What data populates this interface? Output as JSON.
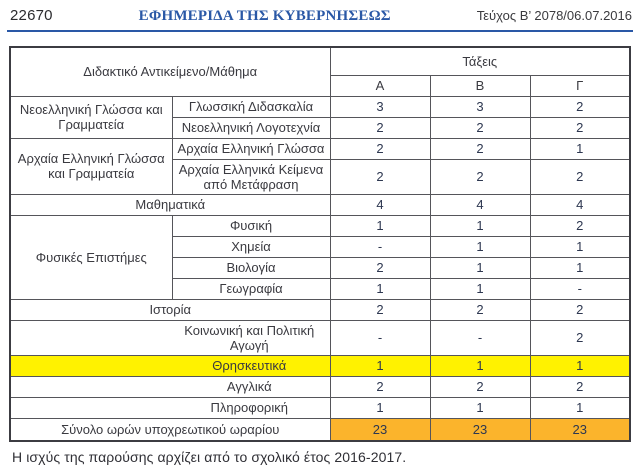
{
  "header": {
    "page_number": "22670",
    "gazette_title": "ΕΦΗΜΕΡΙΔΑ ΤΗΣ ΚΥΒΕΡΝΗΣΕΩΣ",
    "issue_info": "Τεύχος Β’ 2078/06.07.2016",
    "rule_color": "#2A58A6",
    "title_color": "#2A58A6"
  },
  "table": {
    "header": {
      "subject_label": "Διδακτικό Αντικείμενο/Μάθημα",
      "grades_label": "Τάξεις",
      "grade_columns": [
        "Α",
        "Β",
        "Γ"
      ]
    },
    "rows": [
      {
        "group": "Νεοελληνική Γλώσσα και Γραμματεία",
        "subject": "Γλωσσική Διδασκαλία",
        "values": [
          "3",
          "3",
          "2"
        ]
      },
      {
        "subject": "Νεοελληνική Λογοτεχνία",
        "values": [
          "2",
          "2",
          "2"
        ]
      },
      {
        "group": "Αρχαία Ελληνική Γλώσσα και Γραμματεία",
        "subject": "Αρχαία Ελληνική Γλώσσα",
        "values": [
          "2",
          "2",
          "1"
        ]
      },
      {
        "subject": "Αρχαία Ελληνικά Κείμενα από Μετάφραση",
        "values": [
          "2",
          "2",
          "2"
        ]
      },
      {
        "subject": "Μαθηματικά",
        "values": [
          "4",
          "4",
          "4"
        ]
      },
      {
        "group": "Φυσικές Επιστήμες",
        "subject": "Φυσική",
        "values": [
          "1",
          "1",
          "2"
        ]
      },
      {
        "subject": "Χημεία",
        "values": [
          "-",
          "1",
          "1"
        ]
      },
      {
        "subject": "Βιολογία",
        "values": [
          "2",
          "1",
          "1"
        ]
      },
      {
        "subject": "Γεωγραφία",
        "values": [
          "1",
          "1",
          "-"
        ]
      },
      {
        "subject": "Ιστορία",
        "values": [
          "2",
          "2",
          "2"
        ]
      },
      {
        "subject": "Κοινωνική και Πολιτική Αγωγή",
        "values": [
          "-",
          "-",
          "2"
        ]
      },
      {
        "subject": "Θρησκευτικά",
        "values": [
          "1",
          "1",
          "1"
        ],
        "highlight": "yellow"
      },
      {
        "subject": "Αγγλικά",
        "values": [
          "2",
          "2",
          "2"
        ]
      },
      {
        "subject": "Πληροφορική",
        "values": [
          "1",
          "1",
          "1"
        ]
      },
      {
        "subject": "Σύνολο ωρών υποχρεωτικού ωραρίου",
        "values": [
          "23",
          "23",
          "23"
        ],
        "highlight": "orange-values"
      }
    ],
    "highlight_colors": {
      "religion_row": "#FFF200",
      "totals_cells": "#FBB42C"
    }
  },
  "footer": {
    "note": "Η ισχύς της παρούσης αρχίζει από το σχολικό έτος 2016-2017."
  }
}
